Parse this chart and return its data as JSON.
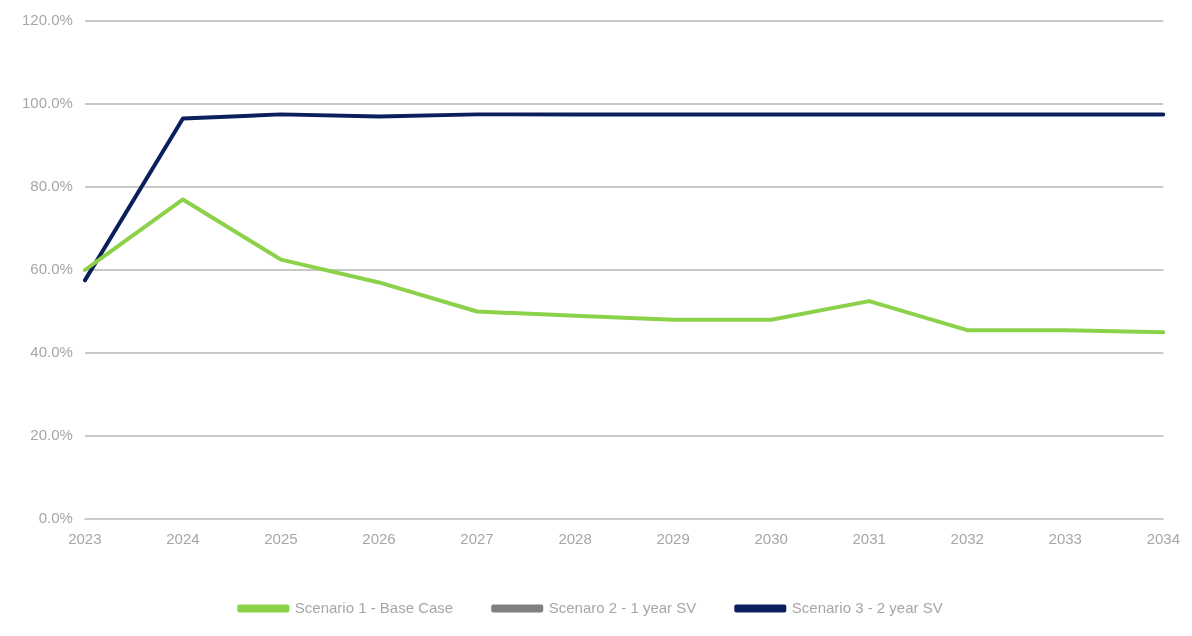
{
  "chart_data": {
    "type": "line",
    "categories": [
      "2023",
      "2024",
      "2025",
      "2026",
      "2027",
      "2028",
      "2029",
      "2030",
      "2031",
      "2032",
      "2033",
      "2034"
    ],
    "series": [
      {
        "name": "Scenario 1 - Base Case",
        "color": "#8cd14a",
        "values": [
          60,
          77,
          62.5,
          57,
          50,
          49,
          48,
          48,
          52.5,
          45.5,
          45.5,
          45
        ]
      },
      {
        "name": "Scenaro 2 - 1 year SV",
        "color": "#808080",
        "values": [
          null,
          null,
          null,
          null,
          null,
          null,
          null,
          null,
          null,
          null,
          null,
          null
        ]
      },
      {
        "name": "Scenario 3 - 2 year SV",
        "color": "#0b1f5c",
        "values": [
          57.5,
          96.5,
          97.5,
          97,
          97.5,
          97.5,
          97.5,
          97.5,
          97.5,
          97.5,
          97.5,
          97.5
        ]
      }
    ],
    "ylim": [
      0,
      120
    ],
    "yticks": [
      {
        "value": 0,
        "label": "0.0%"
      },
      {
        "value": 20,
        "label": "20.0%"
      },
      {
        "value": 40,
        "label": "40.0%"
      },
      {
        "value": 60,
        "label": "60.0%"
      },
      {
        "value": 80,
        "label": "80.0%"
      },
      {
        "value": 100,
        "label": "100.0%"
      },
      {
        "value": 120,
        "label": "120.0%"
      }
    ],
    "grid": "y",
    "legend": "bottom",
    "marker": "none",
    "line_style": "solid"
  }
}
